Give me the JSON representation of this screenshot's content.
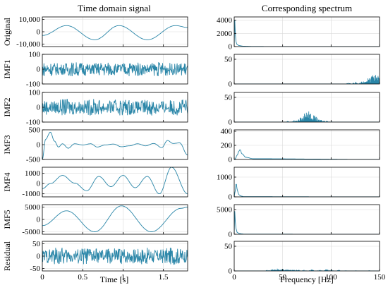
{
  "titles": {
    "left": "Time domain signal",
    "right": "Corresponding spectrum"
  },
  "xaxis": {
    "left_label": "Time [s]",
    "left_ticks": [
      0,
      0.5,
      1,
      1.5
    ],
    "left_xlim": [
      0,
      1.8
    ],
    "right_label": "Frequency [Hz]",
    "right_ticks": [
      0,
      50,
      100,
      150
    ],
    "right_xlim": [
      0,
      150
    ]
  },
  "colors": {
    "line": "#2a86a8",
    "grid": "#d9d9d9",
    "axis": "#000000"
  },
  "chart_data": [
    {
      "type": "line",
      "panel": "time",
      "row_label": "Original",
      "ylim": [
        -12000,
        12000
      ],
      "yticks": [
        "10,000",
        "0",
        "-10,000"
      ],
      "ytick_values": [
        10000,
        0,
        -10000
      ],
      "grid": true,
      "x": [
        0,
        0.3,
        0.65,
        0.95,
        1.3,
        1.65,
        1.8
      ],
      "y": [
        -3000,
        5000,
        -6500,
        5000,
        -6500,
        5000,
        3500
      ]
    },
    {
      "type": "line",
      "panel": "time",
      "row_label": "IMF1",
      "ylim": [
        -100,
        100
      ],
      "yticks": [
        "100",
        "0",
        "-100"
      ],
      "ytick_values": [
        100,
        0,
        -100
      ],
      "grid": true,
      "noise_amplitude": 35
    },
    {
      "type": "line",
      "panel": "time",
      "row_label": "IMF2",
      "ylim": [
        -100,
        100
      ],
      "yticks": [
        "100",
        "0",
        "-100"
      ],
      "ytick_values": [
        100,
        0,
        -100
      ],
      "grid": true,
      "noise_amplitude": 40
    },
    {
      "type": "line",
      "panel": "time",
      "row_label": "IMF3",
      "ylim": [
        -500,
        500
      ],
      "yticks": [
        "500",
        "0",
        "-500"
      ],
      "ytick_values": [
        500,
        0,
        -500
      ],
      "grid": true,
      "x": [
        0,
        0.04,
        0.1,
        0.15,
        0.2,
        0.25,
        0.32,
        0.4,
        0.5,
        0.6,
        0.68,
        0.78,
        0.88,
        0.98,
        1.08,
        1.18,
        1.28,
        1.38,
        1.48,
        1.55,
        1.62,
        1.7,
        1.8
      ],
      "y": [
        -500,
        180,
        420,
        120,
        -80,
        30,
        -120,
        30,
        -10,
        30,
        -80,
        -10,
        20,
        -70,
        -40,
        30,
        -40,
        40,
        -100,
        140,
        40,
        60,
        -350
      ]
    },
    {
      "type": "line",
      "panel": "time",
      "row_label": "IMF4",
      "ylim": [
        -1300,
        1600
      ],
      "yticks": [
        "1000",
        "0",
        "-1000"
      ],
      "ytick_values": [
        1000,
        0,
        -1000
      ],
      "grid": true,
      "x": [
        0,
        0.1,
        0.25,
        0.4,
        0.55,
        0.7,
        0.85,
        1.0,
        1.15,
        1.3,
        1.45,
        1.6,
        1.8
      ],
      "y": [
        -500,
        0,
        800,
        50,
        -700,
        700,
        -300,
        800,
        -400,
        700,
        -1000,
        1600,
        -1000
      ]
    },
    {
      "type": "line",
      "panel": "time",
      "row_label": "IMF5",
      "ylim": [
        -6000,
        6000
      ],
      "yticks": [
        "5000",
        "0",
        "-5000"
      ],
      "ytick_values": [
        5000,
        0,
        -5000
      ],
      "grid": true,
      "x": [
        0,
        0.3,
        0.65,
        0.98,
        1.35,
        1.72,
        1.8
      ],
      "y": [
        -2500,
        3500,
        -5000,
        5500,
        -5000,
        4500,
        5000
      ]
    },
    {
      "type": "line",
      "panel": "time",
      "row_label": "Residual",
      "ylim": [
        -60,
        60
      ],
      "yticks": [
        "50",
        "0",
        "-50"
      ],
      "ytick_values": [
        50,
        0,
        -50
      ],
      "grid": true,
      "noise_amplitude": 25
    },
    {
      "type": "line",
      "panel": "spectrum",
      "row_label": "Original",
      "ylim": [
        0,
        4500
      ],
      "yticks": [
        "4000",
        "2000",
        "0"
      ],
      "ytick_values": [
        4000,
        2000,
        0
      ],
      "grid": true,
      "x": [
        0,
        0.5,
        1,
        2,
        3,
        5,
        10,
        20,
        50,
        150
      ],
      "y": [
        0,
        4200,
        2000,
        600,
        300,
        150,
        50,
        20,
        5,
        0
      ]
    },
    {
      "type": "line",
      "panel": "spectrum",
      "row_label": "IMF1",
      "ylim": [
        0,
        60
      ],
      "yticks": [
        "50",
        "0"
      ],
      "ytick_values": [
        50,
        0
      ],
      "grid": true,
      "peaks": [
        [
          100,
          1
        ],
        [
          118,
          2
        ],
        [
          125,
          4
        ],
        [
          132,
          6
        ],
        [
          138,
          9
        ],
        [
          142,
          10
        ],
        [
          145,
          13
        ],
        [
          148,
          11
        ],
        [
          150,
          8
        ]
      ]
    },
    {
      "type": "line",
      "panel": "spectrum",
      "row_label": "IMF2",
      "ylim": [
        0,
        60
      ],
      "yticks": [
        "50",
        "0"
      ],
      "ytick_values": [
        50,
        0
      ],
      "grid": true,
      "peaks": [
        [
          55,
          2
        ],
        [
          62,
          4
        ],
        [
          68,
          7
        ],
        [
          72,
          10
        ],
        [
          75,
          14
        ],
        [
          78,
          13
        ],
        [
          82,
          9
        ],
        [
          85,
          7
        ],
        [
          90,
          4
        ],
        [
          95,
          2
        ],
        [
          100,
          1
        ]
      ]
    },
    {
      "type": "line",
      "panel": "spectrum",
      "row_label": "IMF3",
      "ylim": [
        0,
        420
      ],
      "yticks": [
        "400",
        "200",
        "0"
      ],
      "ytick_values": [
        400,
        200,
        0
      ],
      "grid": true,
      "x": [
        0,
        1,
        3,
        5,
        6,
        8,
        12,
        20,
        150
      ],
      "y": [
        0,
        10,
        60,
        120,
        140,
        80,
        30,
        10,
        0
      ]
    },
    {
      "type": "line",
      "panel": "spectrum",
      "row_label": "IMF4",
      "ylim": [
        0,
        1500
      ],
      "yticks": [
        "1000",
        "0"
      ],
      "ytick_values": [
        1000,
        0
      ],
      "grid": true,
      "x": [
        0,
        1,
        2,
        3,
        4,
        5,
        7,
        10,
        150
      ],
      "y": [
        0,
        300,
        700,
        400,
        200,
        100,
        40,
        10,
        0
      ]
    },
    {
      "type": "line",
      "panel": "spectrum",
      "row_label": "IMF5",
      "ylim": [
        0,
        6000
      ],
      "yticks": [
        "5000",
        "0"
      ],
      "ytick_values": [
        5000,
        0
      ],
      "grid": true,
      "x": [
        0,
        0.5,
        1,
        2,
        3,
        5,
        10,
        150
      ],
      "y": [
        0,
        4800,
        2600,
        1000,
        400,
        150,
        30,
        0
      ]
    },
    {
      "type": "line",
      "panel": "spectrum",
      "row_label": "Residual",
      "ylim": [
        0,
        60
      ],
      "yticks": [
        "50",
        "0"
      ],
      "ytick_values": [
        50,
        0
      ],
      "grid": true,
      "peaks": [
        [
          35,
          2
        ],
        [
          40,
          3
        ],
        [
          45,
          4
        ],
        [
          50,
          3
        ],
        [
          55,
          3
        ],
        [
          60,
          2
        ],
        [
          65,
          3
        ],
        [
          72,
          2
        ],
        [
          80,
          3
        ],
        [
          88,
          2
        ],
        [
          95,
          3
        ],
        [
          100,
          2
        ],
        [
          108,
          2
        ],
        [
          115,
          1
        ],
        [
          125,
          1
        ],
        [
          140,
          1
        ]
      ]
    }
  ]
}
